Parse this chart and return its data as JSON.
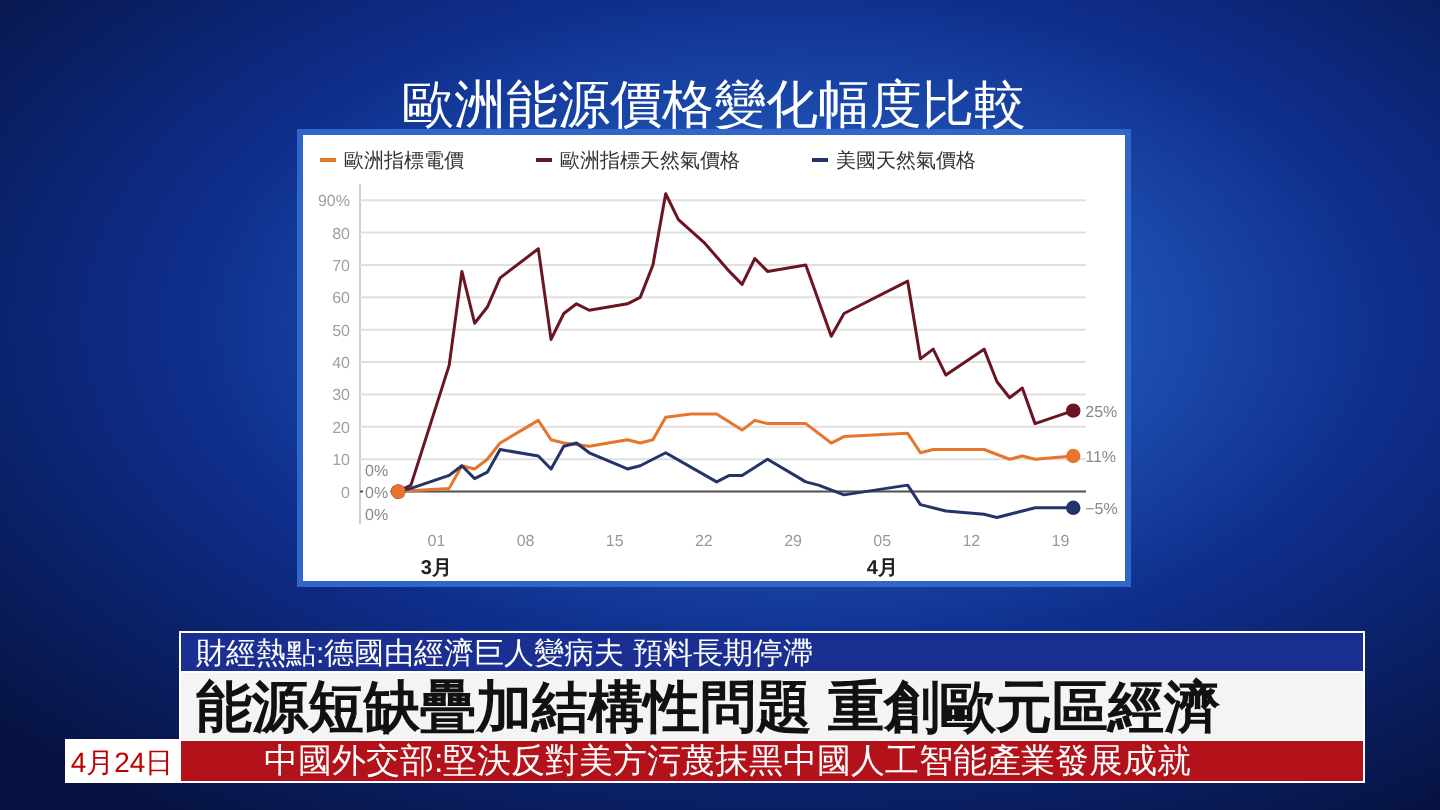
{
  "chart_data": {
    "type": "line",
    "title": "歐洲能源價格變化幅度比較",
    "xlim": [
      "--02-23",
      "--04-21"
    ],
    "xticks": [
      {
        "value": "--03-01",
        "label": "01\n3月"
      },
      {
        "value": "--03-08",
        "label": "08"
      },
      {
        "value": "--03-15",
        "label": "15"
      },
      {
        "value": "--03-22",
        "label": "22"
      },
      {
        "value": "--03-29",
        "label": "29"
      },
      {
        "value": "--04-05",
        "label": "05\n4月"
      },
      {
        "value": "--04-12",
        "label": "12"
      },
      {
        "value": "--04-19",
        "label": "19"
      }
    ],
    "ylim": [
      -10,
      95
    ],
    "yticks": [
      0,
      10,
      20,
      30,
      40,
      50,
      60,
      70,
      80,
      {
        "value": 90,
        "label": "90%"
      }
    ],
    "grid": "y",
    "legend": "top",
    "series": [
      {
        "name": "歐洲指標電價",
        "color": "#e8742c",
        "x": [
          "--02-26",
          "--03-02",
          "--03-03",
          "--03-04",
          "--03-05",
          "--03-06",
          "--03-09",
          "--03-10",
          "--03-11",
          "--03-13",
          "--03-16",
          "--03-17",
          "--03-18",
          "--03-19",
          "--03-21",
          "--03-23",
          "--03-25",
          "--03-26",
          "--03-27",
          "--03-30",
          "--04-01",
          "--04-02",
          "--04-07",
          "--04-08",
          "--04-09",
          "--04-10",
          "--04-13",
          "--04-15",
          "--04-16",
          "--04-17",
          "--04-20"
        ],
        "values": [
          0,
          1,
          8,
          7,
          10,
          15,
          22,
          16,
          15,
          14,
          16,
          15,
          16,
          23,
          24,
          24,
          19,
          22,
          21,
          21,
          15,
          17,
          18,
          12,
          13,
          13,
          13,
          10,
          11,
          10,
          11
        ],
        "value_labels": [
          "0%",
          null,
          null,
          null,
          null,
          null,
          null,
          null,
          null,
          null,
          null,
          null,
          null,
          null,
          null,
          null,
          null,
          null,
          null,
          null,
          null,
          null,
          null,
          null,
          null,
          null,
          null,
          null,
          null,
          null,
          "11%"
        ]
      },
      {
        "name": "歐洲指標天然氣價格",
        "color": "#6a1424",
        "x": [
          "--02-26",
          "--02-27",
          "--03-02",
          "--03-03",
          "--03-04",
          "--03-05",
          "--03-06",
          "--03-09",
          "--03-10",
          "--03-11",
          "--03-12",
          "--03-13",
          "--03-16",
          "--03-17",
          "--03-18",
          "--03-19",
          "--03-20",
          "--03-22",
          "--03-24",
          "--03-25",
          "--03-26",
          "--03-27",
          "--03-30",
          "--04-01",
          "--04-02",
          "--04-07",
          "--04-08",
          "--04-09",
          "--04-10",
          "--04-13",
          "--04-14",
          "--04-15",
          "--04-16",
          "--04-17",
          "--04-20"
        ],
        "values": [
          0,
          2,
          39,
          68,
          52,
          57,
          66,
          75,
          47,
          55,
          58,
          56,
          58,
          60,
          70,
          92,
          84,
          77,
          68,
          64,
          72,
          68,
          70,
          48,
          55,
          65,
          41,
          44,
          36,
          44,
          34,
          29,
          32,
          21,
          25
        ],
        "value_labels": [
          "0%",
          null,
          null,
          null,
          null,
          null,
          null,
          null,
          null,
          null,
          null,
          null,
          null,
          null,
          null,
          null,
          null,
          null,
          null,
          null,
          null,
          null,
          null,
          null,
          null,
          null,
          null,
          null,
          null,
          null,
          null,
          null,
          null,
          null,
          "25%"
        ]
      },
      {
        "name": "美國天然氣價格",
        "color": "#22346a",
        "x": [
          "--02-26",
          "--02-27",
          "--03-02",
          "--03-03",
          "--03-04",
          "--03-05",
          "--03-06",
          "--03-09",
          "--03-10",
          "--03-11",
          "--03-12",
          "--03-13",
          "--03-16",
          "--03-17",
          "--03-19",
          "--03-23",
          "--03-24",
          "--03-25",
          "--03-27",
          "--03-30",
          "--03-31",
          "--04-02",
          "--04-07",
          "--04-08",
          "--04-10",
          "--04-13",
          "--04-14",
          "--04-17",
          "--04-20"
        ],
        "values": [
          0,
          1,
          5,
          8,
          4,
          6,
          13,
          11,
          7,
          14,
          15,
          12,
          7,
          8,
          12,
          3,
          5,
          5,
          10,
          3,
          2,
          -1,
          2,
          -4,
          -6,
          -7,
          -8,
          -5,
          -5
        ],
        "value_labels": [
          "0%",
          null,
          null,
          null,
          null,
          null,
          null,
          null,
          null,
          null,
          null,
          null,
          null,
          null,
          null,
          null,
          null,
          null,
          null,
          null,
          null,
          null,
          null,
          null,
          null,
          null,
          null,
          null,
          "−5%"
        ]
      }
    ],
    "annotations": [
      "財經熱點:德國由經濟巨人變病夫 預料長期停滯",
      "能源短缺疊加結構性問題 重創歐元區經濟",
      "中國外交部:堅決反對美方污蔑抹黑中國人工智能產業發展成就",
      "4月24日"
    ]
  }
}
